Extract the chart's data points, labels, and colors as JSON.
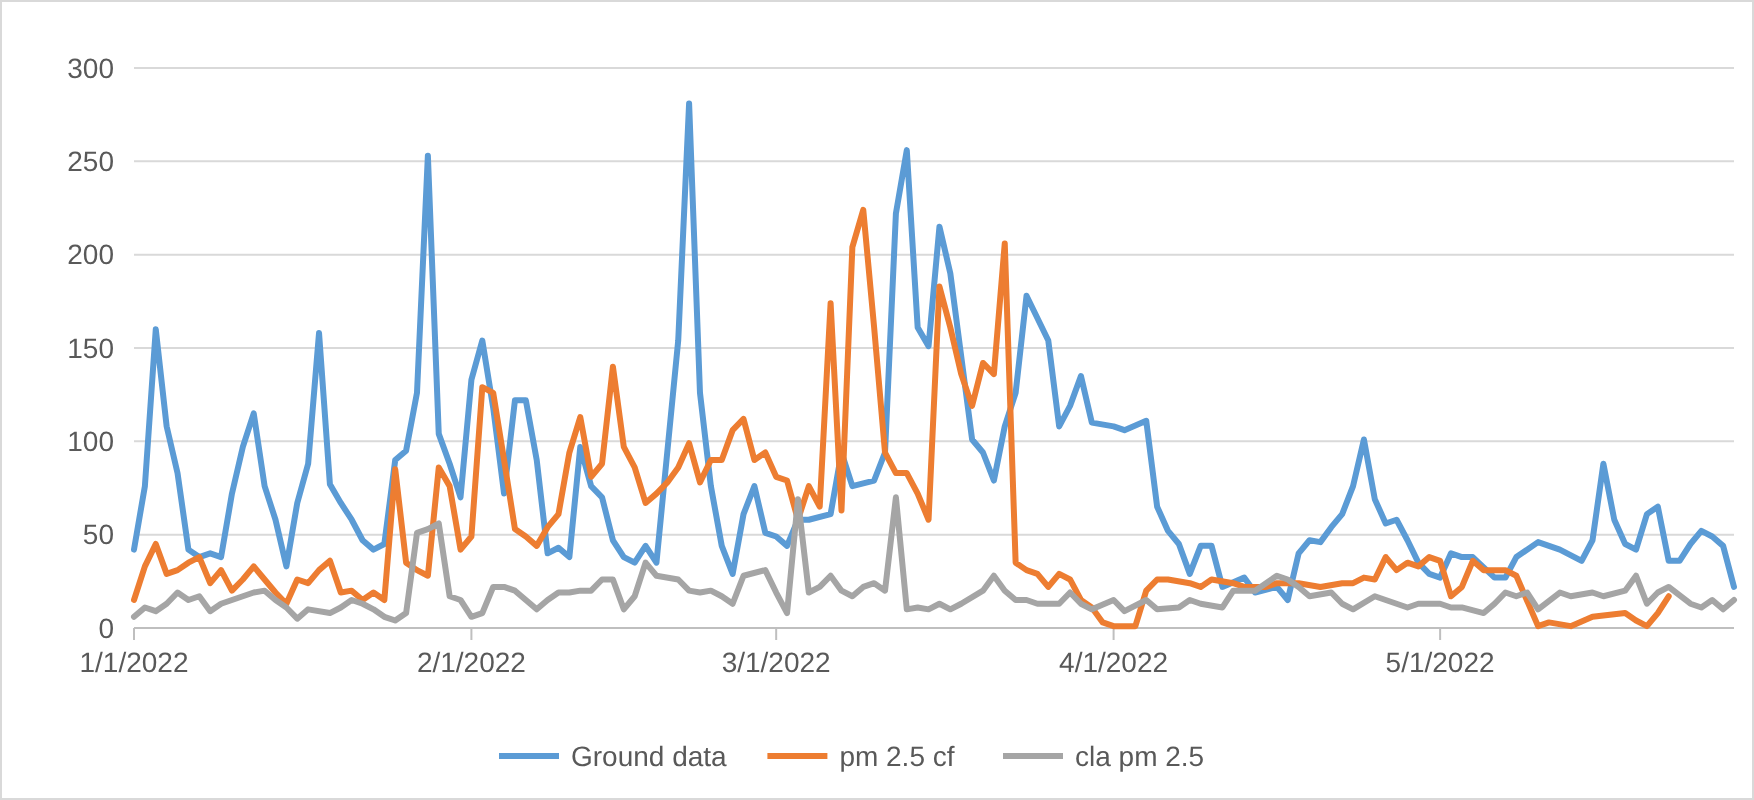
{
  "chart_data": {
    "type": "line",
    "ylim": [
      0,
      300
    ],
    "yticks": [
      0,
      50,
      100,
      150,
      200,
      250,
      300
    ],
    "xlim": [
      "2022-01-01",
      "2022-05-28"
    ],
    "xticks": [
      {
        "value": "2022-01-01",
        "label": "1/1/2022"
      },
      {
        "value": "2022-02-01",
        "label": "2/1/2022"
      },
      {
        "value": "2022-03-01",
        "label": "3/1/2022"
      },
      {
        "value": "2022-04-01",
        "label": "4/1/2022"
      },
      {
        "value": "2022-05-01",
        "label": "5/1/2022"
      }
    ],
    "grid": "y",
    "legend": "bottom",
    "series": [
      {
        "name": "Ground data",
        "color": "#5b9bd5",
        "x": [
          "2022-01-01",
          "2022-01-02",
          "2022-01-03",
          "2022-01-04",
          "2022-01-05",
          "2022-01-06",
          "2022-01-07",
          "2022-01-08",
          "2022-01-09",
          "2022-01-10",
          "2022-01-11",
          "2022-01-12",
          "2022-01-13",
          "2022-01-14",
          "2022-01-15",
          "2022-01-16",
          "2022-01-17",
          "2022-01-18",
          "2022-01-19",
          "2022-01-20",
          "2022-01-21",
          "2022-01-22",
          "2022-01-23",
          "2022-01-24",
          "2022-01-25",
          "2022-01-26",
          "2022-01-27",
          "2022-01-28",
          "2022-01-29",
          "2022-01-30",
          "2022-01-31",
          "2022-02-01",
          "2022-02-02",
          "2022-02-03",
          "2022-02-04",
          "2022-02-05",
          "2022-02-06",
          "2022-02-07",
          "2022-02-08",
          "2022-02-09",
          "2022-02-10",
          "2022-02-11",
          "2022-02-12",
          "2022-02-13",
          "2022-02-14",
          "2022-02-15",
          "2022-02-16",
          "2022-02-17",
          "2022-02-18",
          "2022-02-20",
          "2022-02-21",
          "2022-02-22",
          "2022-02-23",
          "2022-02-24",
          "2022-02-25",
          "2022-02-26",
          "2022-02-27",
          "2022-02-28",
          "2022-03-01",
          "2022-03-02",
          "2022-03-03",
          "2022-03-04",
          "2022-03-06",
          "2022-03-07",
          "2022-03-08",
          "2022-03-10",
          "2022-03-11",
          "2022-03-12",
          "2022-03-13",
          "2022-03-14",
          "2022-03-15",
          "2022-03-16",
          "2022-03-17",
          "2022-03-19",
          "2022-03-20",
          "2022-03-21",
          "2022-03-22",
          "2022-03-23",
          "2022-03-24",
          "2022-03-26",
          "2022-03-27",
          "2022-03-28",
          "2022-03-29",
          "2022-03-30",
          "2022-04-01",
          "2022-04-02",
          "2022-04-04",
          "2022-04-05",
          "2022-04-06",
          "2022-04-07",
          "2022-04-08",
          "2022-04-09",
          "2022-04-10",
          "2022-04-11",
          "2022-04-13",
          "2022-04-14",
          "2022-04-16",
          "2022-04-17",
          "2022-04-18",
          "2022-04-19",
          "2022-04-20",
          "2022-04-21",
          "2022-04-22",
          "2022-04-23",
          "2022-04-24",
          "2022-04-25",
          "2022-04-26",
          "2022-04-27",
          "2022-04-28",
          "2022-04-29",
          "2022-04-30",
          "2022-05-01",
          "2022-05-02",
          "2022-05-03",
          "2022-05-04",
          "2022-05-06",
          "2022-05-07",
          "2022-05-08",
          "2022-05-10",
          "2022-05-11",
          "2022-05-12",
          "2022-05-14",
          "2022-05-15",
          "2022-05-16",
          "2022-05-17",
          "2022-05-18",
          "2022-05-19",
          "2022-05-20",
          "2022-05-21",
          "2022-05-22",
          "2022-05-23",
          "2022-05-24",
          "2022-05-25",
          "2022-05-26",
          "2022-05-27",
          "2022-05-28"
        ],
        "values": [
          42,
          76,
          160,
          108,
          83,
          42,
          38,
          40,
          38,
          72,
          97,
          115,
          76,
          58,
          33,
          67,
          88,
          158,
          77,
          67,
          58,
          47,
          42,
          45,
          90,
          95,
          126,
          253,
          104,
          88,
          70,
          133,
          154,
          118,
          72,
          122,
          122,
          90,
          40,
          43,
          38,
          97,
          76,
          70,
          47,
          38,
          35,
          44,
          35,
          154,
          281,
          126,
          76,
          44,
          29,
          61,
          76,
          51,
          49,
          44,
          58,
          58,
          61,
          94,
          76,
          79,
          94,
          222,
          256,
          161,
          151,
          215,
          190,
          101,
          94,
          79,
          108,
          126,
          178,
          154,
          108,
          119,
          135,
          110,
          108,
          106,
          111,
          65,
          52,
          45,
          29,
          44,
          44,
          22,
          27,
          19,
          22,
          15,
          40,
          47,
          46,
          54,
          61,
          76,
          101,
          69,
          56,
          58,
          47,
          35,
          29,
          27,
          40,
          38,
          38,
          27,
          27,
          38,
          46,
          44,
          42,
          36,
          47,
          88,
          58,
          45,
          42,
          61,
          65,
          36,
          36,
          45,
          52,
          49,
          44,
          22
        ]
      },
      {
        "name": "pm 2.5 cf",
        "color": "#ed7d31",
        "x": [
          "2022-01-01",
          "2022-01-02",
          "2022-01-03",
          "2022-01-04",
          "2022-01-05",
          "2022-01-06",
          "2022-01-07",
          "2022-01-08",
          "2022-01-09",
          "2022-01-10",
          "2022-01-11",
          "2022-01-12",
          "2022-01-13",
          "2022-01-14",
          "2022-01-15",
          "2022-01-16",
          "2022-01-17",
          "2022-01-18",
          "2022-01-19",
          "2022-01-20",
          "2022-01-21",
          "2022-01-22",
          "2022-01-23",
          "2022-01-24",
          "2022-01-25",
          "2022-01-26",
          "2022-01-27",
          "2022-01-28",
          "2022-01-29",
          "2022-01-30",
          "2022-01-31",
          "2022-02-01",
          "2022-02-02",
          "2022-02-03",
          "2022-02-04",
          "2022-02-05",
          "2022-02-06",
          "2022-02-07",
          "2022-02-08",
          "2022-02-09",
          "2022-02-10",
          "2022-02-11",
          "2022-02-12",
          "2022-02-13",
          "2022-02-14",
          "2022-02-15",
          "2022-02-16",
          "2022-02-17",
          "2022-02-18",
          "2022-02-19",
          "2022-02-20",
          "2022-02-21",
          "2022-02-22",
          "2022-02-23",
          "2022-02-24",
          "2022-02-25",
          "2022-02-26",
          "2022-02-27",
          "2022-02-28",
          "2022-03-01",
          "2022-03-02",
          "2022-03-03",
          "2022-03-04",
          "2022-03-05",
          "2022-03-06",
          "2022-03-07",
          "2022-03-08",
          "2022-03-09",
          "2022-03-10",
          "2022-03-11",
          "2022-03-12",
          "2022-03-13",
          "2022-03-14",
          "2022-03-15",
          "2022-03-16",
          "2022-03-17",
          "2022-03-18",
          "2022-03-19",
          "2022-03-20",
          "2022-03-21",
          "2022-03-22",
          "2022-03-23",
          "2022-03-24",
          "2022-03-25",
          "2022-03-26",
          "2022-03-27",
          "2022-03-28",
          "2022-03-29",
          "2022-03-30",
          "2022-03-31",
          "2022-04-01",
          "2022-04-02",
          "2022-04-03",
          "2022-04-04",
          "2022-04-05",
          "2022-04-06",
          "2022-04-08",
          "2022-04-09",
          "2022-04-10",
          "2022-04-12",
          "2022-04-13",
          "2022-04-15",
          "2022-04-16",
          "2022-04-18",
          "2022-04-20",
          "2022-04-22",
          "2022-04-23",
          "2022-04-24",
          "2022-04-25",
          "2022-04-26",
          "2022-04-27",
          "2022-04-28",
          "2022-04-29",
          "2022-04-30",
          "2022-05-01",
          "2022-05-02",
          "2022-05-03",
          "2022-05-04",
          "2022-05-05",
          "2022-05-07",
          "2022-05-08",
          "2022-05-10",
          "2022-05-11",
          "2022-05-13",
          "2022-05-15",
          "2022-05-18",
          "2022-05-19",
          "2022-05-20",
          "2022-05-21",
          "2022-05-22"
        ],
        "values": [
          15,
          33,
          45,
          29,
          31,
          35,
          38,
          24,
          31,
          20,
          26,
          33,
          26,
          19,
          13,
          26,
          24,
          31,
          36,
          19,
          20,
          15,
          19,
          15,
          85,
          35,
          31,
          28,
          86,
          76,
          42,
          49,
          129,
          126,
          90,
          53,
          49,
          44,
          54,
          61,
          94,
          113,
          81,
          88,
          140,
          97,
          86,
          67,
          72,
          78,
          86,
          99,
          78,
          90,
          90,
          106,
          112,
          90,
          94,
          81,
          79,
          58,
          76,
          65,
          174,
          63,
          204,
          224,
          161,
          94,
          83,
          83,
          72,
          58,
          183,
          161,
          136,
          119,
          142,
          136,
          206,
          35,
          31,
          29,
          22,
          29,
          26,
          15,
          11,
          3,
          1,
          1,
          1,
          20,
          26,
          26,
          24,
          22,
          26,
          24,
          22,
          22,
          24,
          24,
          22,
          24,
          24,
          27,
          26,
          38,
          31,
          35,
          33,
          38,
          36,
          17,
          22,
          36,
          31,
          31,
          28,
          1,
          3,
          1,
          6,
          8,
          4,
          1,
          8,
          17
        ]
      },
      {
        "name": "cla pm 2.5",
        "color": "#a5a5a5",
        "x": [
          "2022-01-01",
          "2022-01-02",
          "2022-01-03",
          "2022-01-04",
          "2022-01-05",
          "2022-01-06",
          "2022-01-07",
          "2022-01-08",
          "2022-01-09",
          "2022-01-11",
          "2022-01-12",
          "2022-01-13",
          "2022-01-14",
          "2022-01-15",
          "2022-01-16",
          "2022-01-17",
          "2022-01-19",
          "2022-01-20",
          "2022-01-21",
          "2022-01-22",
          "2022-01-23",
          "2022-01-24",
          "2022-01-25",
          "2022-01-26",
          "2022-01-27",
          "2022-01-28",
          "2022-01-29",
          "2022-01-30",
          "2022-01-31",
          "2022-02-01",
          "2022-02-02",
          "2022-02-03",
          "2022-02-04",
          "2022-02-05",
          "2022-02-06",
          "2022-02-07",
          "2022-02-08",
          "2022-02-09",
          "2022-02-10",
          "2022-02-11",
          "2022-02-12",
          "2022-02-13",
          "2022-02-14",
          "2022-02-15",
          "2022-02-16",
          "2022-02-17",
          "2022-02-18",
          "2022-02-20",
          "2022-02-21",
          "2022-02-22",
          "2022-02-23",
          "2022-02-24",
          "2022-02-25",
          "2022-02-26",
          "2022-02-28",
          "2022-03-01",
          "2022-03-02",
          "2022-03-03",
          "2022-03-04",
          "2022-03-05",
          "2022-03-06",
          "2022-03-07",
          "2022-03-08",
          "2022-03-09",
          "2022-03-10",
          "2022-03-11",
          "2022-03-12",
          "2022-03-13",
          "2022-03-14",
          "2022-03-15",
          "2022-03-16",
          "2022-03-17",
          "2022-03-18",
          "2022-03-20",
          "2022-03-21",
          "2022-03-22",
          "2022-03-23",
          "2022-03-24",
          "2022-03-25",
          "2022-03-27",
          "2022-03-28",
          "2022-03-29",
          "2022-03-30",
          "2022-04-01",
          "2022-04-02",
          "2022-04-04",
          "2022-04-05",
          "2022-04-07",
          "2022-04-08",
          "2022-04-09",
          "2022-04-11",
          "2022-04-12",
          "2022-04-14",
          "2022-04-16",
          "2022-04-17",
          "2022-04-18",
          "2022-04-19",
          "2022-04-21",
          "2022-04-22",
          "2022-04-23",
          "2022-04-25",
          "2022-04-26",
          "2022-04-28",
          "2022-04-29",
          "2022-05-01",
          "2022-05-02",
          "2022-05-03",
          "2022-05-05",
          "2022-05-06",
          "2022-05-07",
          "2022-05-08",
          "2022-05-09",
          "2022-05-10",
          "2022-05-12",
          "2022-05-13",
          "2022-05-15",
          "2022-05-16",
          "2022-05-18",
          "2022-05-19",
          "2022-05-20",
          "2022-05-21",
          "2022-05-22",
          "2022-05-24",
          "2022-05-25",
          "2022-05-26",
          "2022-05-27",
          "2022-05-28"
        ],
        "values": [
          6,
          11,
          9,
          13,
          19,
          15,
          17,
          9,
          13,
          17,
          19,
          20,
          15,
          11,
          5,
          10,
          8,
          11,
          15,
          13,
          10,
          6,
          4,
          8,
          51,
          53,
          56,
          17,
          15,
          6,
          8,
          22,
          22,
          20,
          15,
          10,
          15,
          19,
          19,
          20,
          20,
          26,
          26,
          10,
          17,
          35,
          28,
          26,
          20,
          19,
          20,
          17,
          13,
          28,
          31,
          19,
          8,
          69,
          19,
          22,
          28,
          20,
          17,
          22,
          24,
          20,
          70,
          10,
          11,
          10,
          13,
          10,
          13,
          20,
          28,
          20,
          15,
          15,
          13,
          13,
          19,
          13,
          10,
          15,
          9,
          15,
          10,
          11,
          15,
          13,
          11,
          20,
          20,
          28,
          26,
          22,
          17,
          19,
          13,
          10,
          17,
          15,
          11,
          13,
          13,
          11,
          11,
          8,
          13,
          19,
          17,
          19,
          10,
          19,
          17,
          19,
          17,
          20,
          28,
          13,
          19,
          22,
          13,
          11,
          15,
          10,
          15
        ]
      }
    ]
  }
}
